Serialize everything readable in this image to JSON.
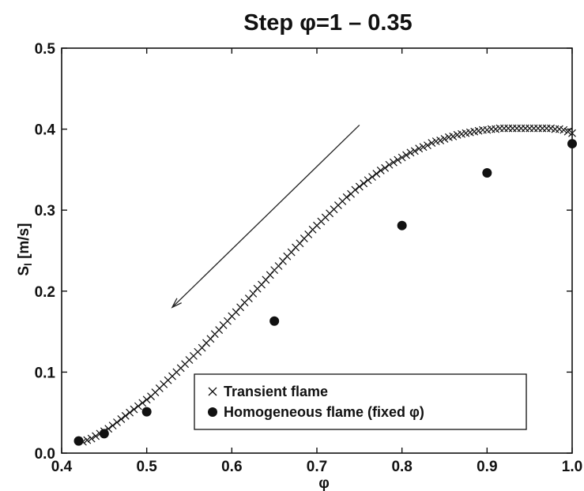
{
  "chart_data": {
    "type": "scatter",
    "title": "Step φ=1 – 0.35",
    "xlabel": "φ",
    "ylabel": "S",
    "ylabel_subscript": "l",
    "ylabel_unit": " [m/s]",
    "xlim": [
      0.4,
      1.0
    ],
    "ylim": [
      0.0,
      0.5
    ],
    "xticks": [
      0.4,
      0.5,
      0.6,
      0.7,
      0.8,
      0.9,
      1.0
    ],
    "xtick_labels": [
      "0.4",
      "0.5",
      "0.6",
      "0.7",
      "0.8",
      "0.9",
      "1.0"
    ],
    "yticks": [
      0.0,
      0.1,
      0.2,
      0.3,
      0.4,
      0.5
    ],
    "ytick_labels": [
      "0.0",
      "0.1",
      "0.2",
      "0.3",
      "0.4",
      "0.5"
    ],
    "grid": false,
    "legend_position": "bottom-center",
    "annotation": {
      "type": "arrow",
      "direction": "decreasing phi",
      "from": [
        0.75,
        0.405
      ],
      "to": [
        0.53,
        0.18
      ]
    },
    "series": [
      {
        "name": "Transient flame",
        "marker": "x",
        "x": [
          0.425,
          0.43,
          0.435,
          0.44,
          0.445,
          0.45,
          0.455,
          0.46,
          0.465,
          0.47,
          0.475,
          0.48,
          0.485,
          0.49,
          0.495,
          0.5,
          0.505,
          0.51,
          0.515,
          0.52,
          0.525,
          0.53,
          0.535,
          0.54,
          0.545,
          0.55,
          0.555,
          0.56,
          0.565,
          0.57,
          0.575,
          0.58,
          0.585,
          0.59,
          0.595,
          0.6,
          0.605,
          0.61,
          0.615,
          0.62,
          0.625,
          0.63,
          0.635,
          0.64,
          0.645,
          0.65,
          0.655,
          0.66,
          0.665,
          0.67,
          0.675,
          0.68,
          0.685,
          0.69,
          0.695,
          0.7,
          0.705,
          0.71,
          0.715,
          0.72,
          0.725,
          0.73,
          0.735,
          0.74,
          0.745,
          0.75,
          0.755,
          0.76,
          0.765,
          0.77,
          0.775,
          0.78,
          0.785,
          0.79,
          0.795,
          0.8,
          0.805,
          0.81,
          0.815,
          0.82,
          0.825,
          0.83,
          0.835,
          0.84,
          0.845,
          0.85,
          0.855,
          0.86,
          0.865,
          0.87,
          0.875,
          0.88,
          0.885,
          0.89,
          0.895,
          0.9,
          0.905,
          0.91,
          0.915,
          0.92,
          0.925,
          0.93,
          0.935,
          0.94,
          0.945,
          0.95,
          0.955,
          0.96,
          0.965,
          0.97,
          0.975,
          0.98,
          0.985,
          0.99,
          0.995,
          1.0
        ],
        "y": [
          0.014,
          0.016,
          0.018,
          0.021,
          0.024,
          0.027,
          0.03,
          0.034,
          0.038,
          0.042,
          0.046,
          0.05,
          0.054,
          0.058,
          0.062,
          0.066,
          0.07,
          0.075,
          0.08,
          0.085,
          0.09,
          0.095,
          0.1,
          0.105,
          0.11,
          0.115,
          0.12,
          0.125,
          0.13,
          0.136,
          0.141,
          0.147,
          0.152,
          0.158,
          0.163,
          0.169,
          0.174,
          0.18,
          0.186,
          0.191,
          0.197,
          0.203,
          0.208,
          0.214,
          0.22,
          0.226,
          0.231,
          0.237,
          0.243,
          0.248,
          0.254,
          0.259,
          0.265,
          0.27,
          0.276,
          0.281,
          0.286,
          0.291,
          0.296,
          0.301,
          0.306,
          0.311,
          0.316,
          0.32,
          0.325,
          0.329,
          0.333,
          0.337,
          0.341,
          0.345,
          0.349,
          0.352,
          0.356,
          0.359,
          0.362,
          0.365,
          0.368,
          0.371,
          0.373,
          0.376,
          0.378,
          0.38,
          0.383,
          0.385,
          0.386,
          0.388,
          0.39,
          0.391,
          0.393,
          0.394,
          0.395,
          0.396,
          0.397,
          0.398,
          0.399,
          0.399,
          0.4,
          0.4,
          0.401,
          0.401,
          0.401,
          0.401,
          0.401,
          0.401,
          0.401,
          0.401,
          0.401,
          0.401,
          0.401,
          0.401,
          0.401,
          0.4,
          0.4,
          0.399,
          0.397,
          0.395
        ]
      },
      {
        "name": "Homogeneous flame (fixed φ)",
        "marker": "filled-circle",
        "x": [
          0.42,
          0.45,
          0.5,
          0.65,
          0.8,
          0.9,
          1.0
        ],
        "y": [
          0.015,
          0.024,
          0.051,
          0.163,
          0.281,
          0.346,
          0.382
        ]
      }
    ]
  }
}
